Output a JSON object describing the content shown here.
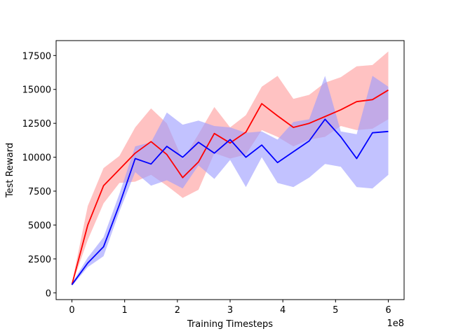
{
  "chart_data": {
    "type": "line",
    "xlabel": "Training Timesteps",
    "ylabel": "Test Reward",
    "x_offset_label": "1e8",
    "x_scale": 100000000,
    "xlim": [
      -0.3,
      6.3
    ],
    "ylim": [
      -500,
      18600
    ],
    "x_ticks": [
      0,
      1,
      2,
      3,
      4,
      5,
      6
    ],
    "x_tick_labels": [
      "0",
      "1",
      "2",
      "3",
      "4",
      "5",
      "6"
    ],
    "y_ticks": [
      0,
      2500,
      5000,
      7500,
      10000,
      12500,
      15000,
      17500
    ],
    "y_tick_labels": [
      "0",
      "2500",
      "5000",
      "7500",
      "10000",
      "12500",
      "15000",
      "17500"
    ],
    "x": [
      0,
      0.3,
      0.6,
      0.9,
      1.2,
      1.5,
      1.8,
      2.1,
      2.4,
      2.7,
      3.0,
      3.3,
      3.6,
      3.9,
      4.2,
      4.5,
      4.8,
      5.1,
      5.4,
      5.7,
      6.0
    ],
    "series": [
      {
        "name": "red",
        "color": "#ff0000",
        "band_color": "#ff9999",
        "values": [
          600,
          5000,
          7900,
          9100,
          10300,
          11150,
          10200,
          8500,
          9650,
          11750,
          11050,
          11850,
          13950,
          13050,
          12200,
          12500,
          13000,
          13500,
          14100,
          14250,
          14950
        ],
        "lower": [
          600,
          3900,
          6600,
          8100,
          8200,
          8700,
          7900,
          7000,
          7600,
          10300,
          9900,
          10200,
          12000,
          11500,
          10800,
          11300,
          11500,
          12300,
          12000,
          12100,
          12800
        ],
        "upper": [
          700,
          6400,
          9200,
          10100,
          12200,
          13600,
          12500,
          9800,
          11700,
          13700,
          12200,
          13100,
          15200,
          16000,
          14300,
          14600,
          15500,
          15900,
          16700,
          16800,
          17800
        ]
      },
      {
        "name": "blue",
        "color": "#0000ff",
        "band_color": "#9999ff",
        "values": [
          600,
          2200,
          3400,
          6500,
          9900,
          9500,
          10800,
          10000,
          11100,
          10300,
          11300,
          10000,
          10900,
          9600,
          10400,
          11200,
          12800,
          11500,
          9900,
          11800,
          11900
        ],
        "lower": [
          500,
          1900,
          2700,
          6000,
          8900,
          7900,
          8300,
          7700,
          9400,
          8400,
          9800,
          7800,
          10000,
          8100,
          7800,
          8500,
          9500,
          9300,
          7800,
          7700,
          8700
        ],
        "upper": [
          700,
          2600,
          4100,
          7300,
          10800,
          11100,
          13300,
          12400,
          12700,
          12300,
          12200,
          11800,
          11900,
          11300,
          12600,
          12800,
          16000,
          11900,
          11700,
          16000,
          15200
        ]
      }
    ]
  }
}
